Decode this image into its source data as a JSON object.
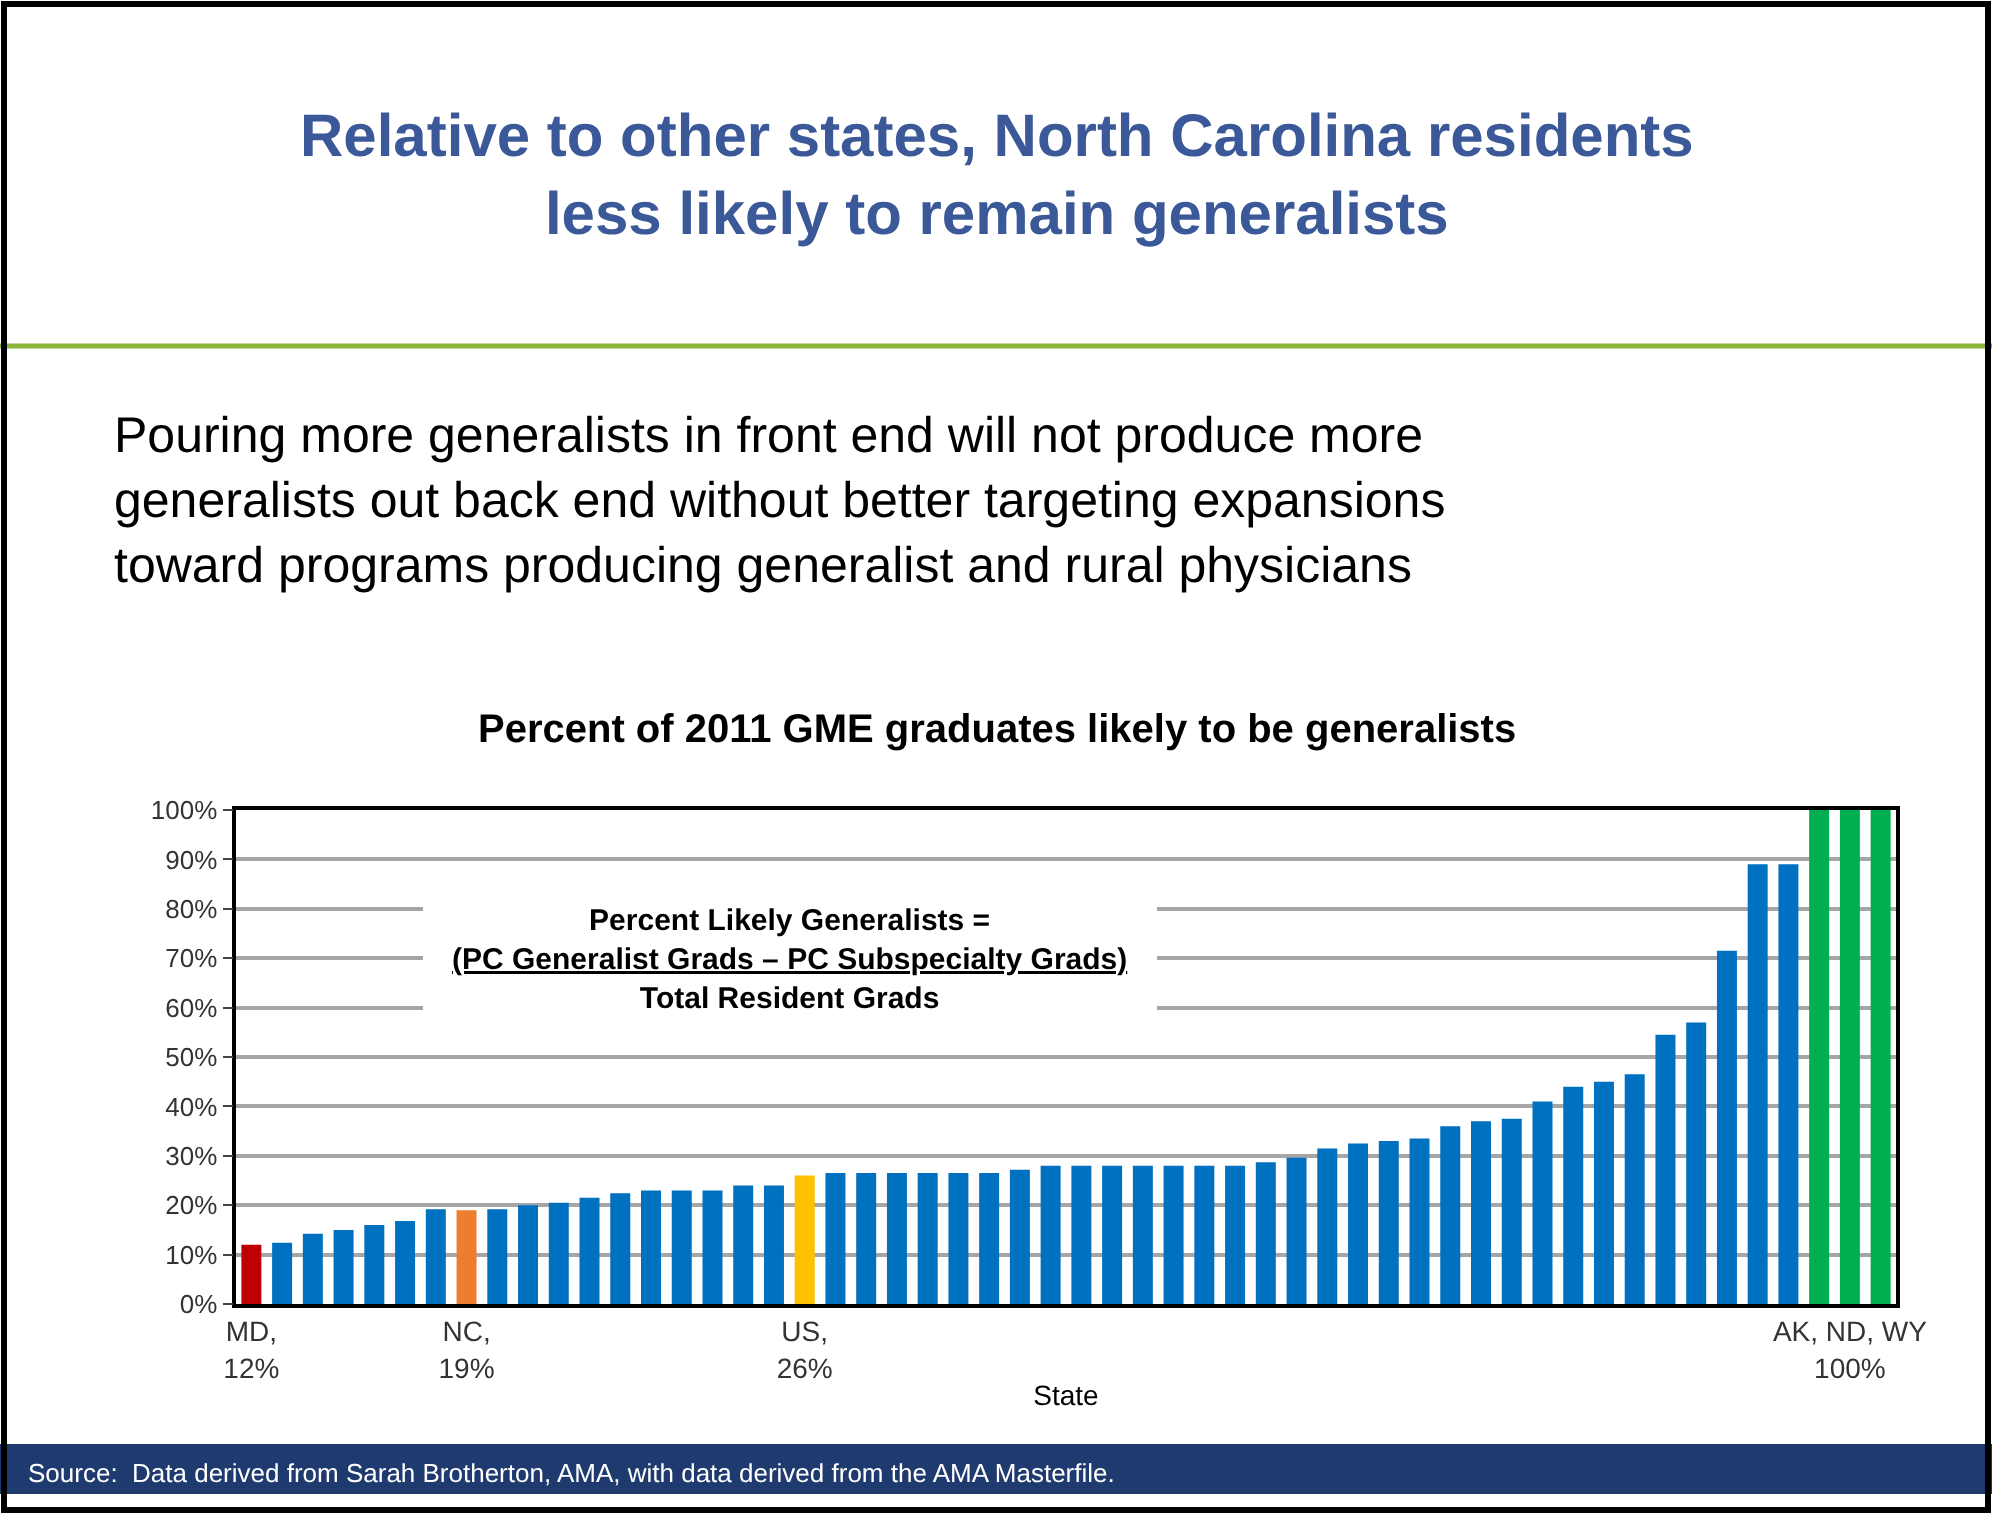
{
  "chart_data": {
    "type": "bar",
    "title": "Relative to other states, North Carolina residents\nless likely to remain generalists",
    "subtitle": "Pouring more generalists in front end will not produce more\ngeneralists out back end without better targeting expansions\ntoward programs producing generalist and rural physicians",
    "xlabel": "State",
    "categories": [
      "MD,\n12%",
      null,
      null,
      null,
      null,
      null,
      null,
      "NC,\n19%",
      null,
      null,
      null,
      null,
      null,
      null,
      null,
      null,
      null,
      null,
      "US,\n26%",
      null,
      null,
      null,
      null,
      null,
      null,
      null,
      null,
      null,
      null,
      null,
      null,
      null,
      null,
      null,
      null,
      null,
      null,
      null,
      null,
      null,
      null,
      null,
      null,
      null,
      null,
      null,
      null,
      null,
      null,
      null,
      null,
      null,
      "AK, ND, WY\n100%",
      null
    ],
    "values": [
      12,
      12.4,
      14.2,
      15,
      16,
      16.8,
      19.2,
      19,
      19.2,
      20,
      20.5,
      21.5,
      22.4,
      23,
      23,
      23,
      24,
      24,
      26,
      26.5,
      26.5,
      26.5,
      26.5,
      26.5,
      26.5,
      27.2,
      28,
      28,
      28,
      28,
      28,
      28,
      28,
      28.7,
      29.6,
      31.5,
      32.5,
      33,
      33.5,
      36,
      37,
      37.5,
      41,
      44,
      45,
      46.5,
      54.5,
      57,
      71.5,
      89,
      89,
      100,
      100,
      100
    ],
    "colors": [
      "#c00000",
      "#0070c0",
      "#0070c0",
      "#0070c0",
      "#0070c0",
      "#0070c0",
      "#0070c0",
      "#ed7d31",
      "#0070c0",
      "#0070c0",
      "#0070c0",
      "#0070c0",
      "#0070c0",
      "#0070c0",
      "#0070c0",
      "#0070c0",
      "#0070c0",
      "#0070c0",
      "#ffc000",
      "#0070c0",
      "#0070c0",
      "#0070c0",
      "#0070c0",
      "#0070c0",
      "#0070c0",
      "#0070c0",
      "#0070c0",
      "#0070c0",
      "#0070c0",
      "#0070c0",
      "#0070c0",
      "#0070c0",
      "#0070c0",
      "#0070c0",
      "#0070c0",
      "#0070c0",
      "#0070c0",
      "#0070c0",
      "#0070c0",
      "#0070c0",
      "#0070c0",
      "#0070c0",
      "#0070c0",
      "#0070c0",
      "#0070c0",
      "#0070c0",
      "#0070c0",
      "#0070c0",
      "#0070c0",
      "#0070c0",
      "#0070c0",
      "#00b050",
      "#00b050",
      "#00b050"
    ],
    "ylim": [
      0,
      100
    ],
    "yticks": [
      {
        "value": 0,
        "label": "0%"
      },
      {
        "value": 10,
        "label": "10%"
      },
      {
        "value": 20,
        "label": "20%"
      },
      {
        "value": 30,
        "label": "30%"
      },
      {
        "value": 40,
        "label": "40%"
      },
      {
        "value": 50,
        "label": "50%"
      },
      {
        "value": 60,
        "label": "60%"
      },
      {
        "value": 70,
        "label": "70%"
      },
      {
        "value": 80,
        "label": "80%"
      },
      {
        "value": 90,
        "label": "90%"
      },
      {
        "value": 100,
        "label": "100%"
      }
    ],
    "grid": "y",
    "annotations": [
      "Percent of 2011 GME graduates likely to be generalists",
      "Percent Likely Generalists =\n(PC Generalist Grads – PC Subspecialty Grads)\nTotal Resident Grads",
      "Source:  Data derived from Sarah Brotherton, AMA, with data derived from the AMA Masterfile."
    ]
  }
}
